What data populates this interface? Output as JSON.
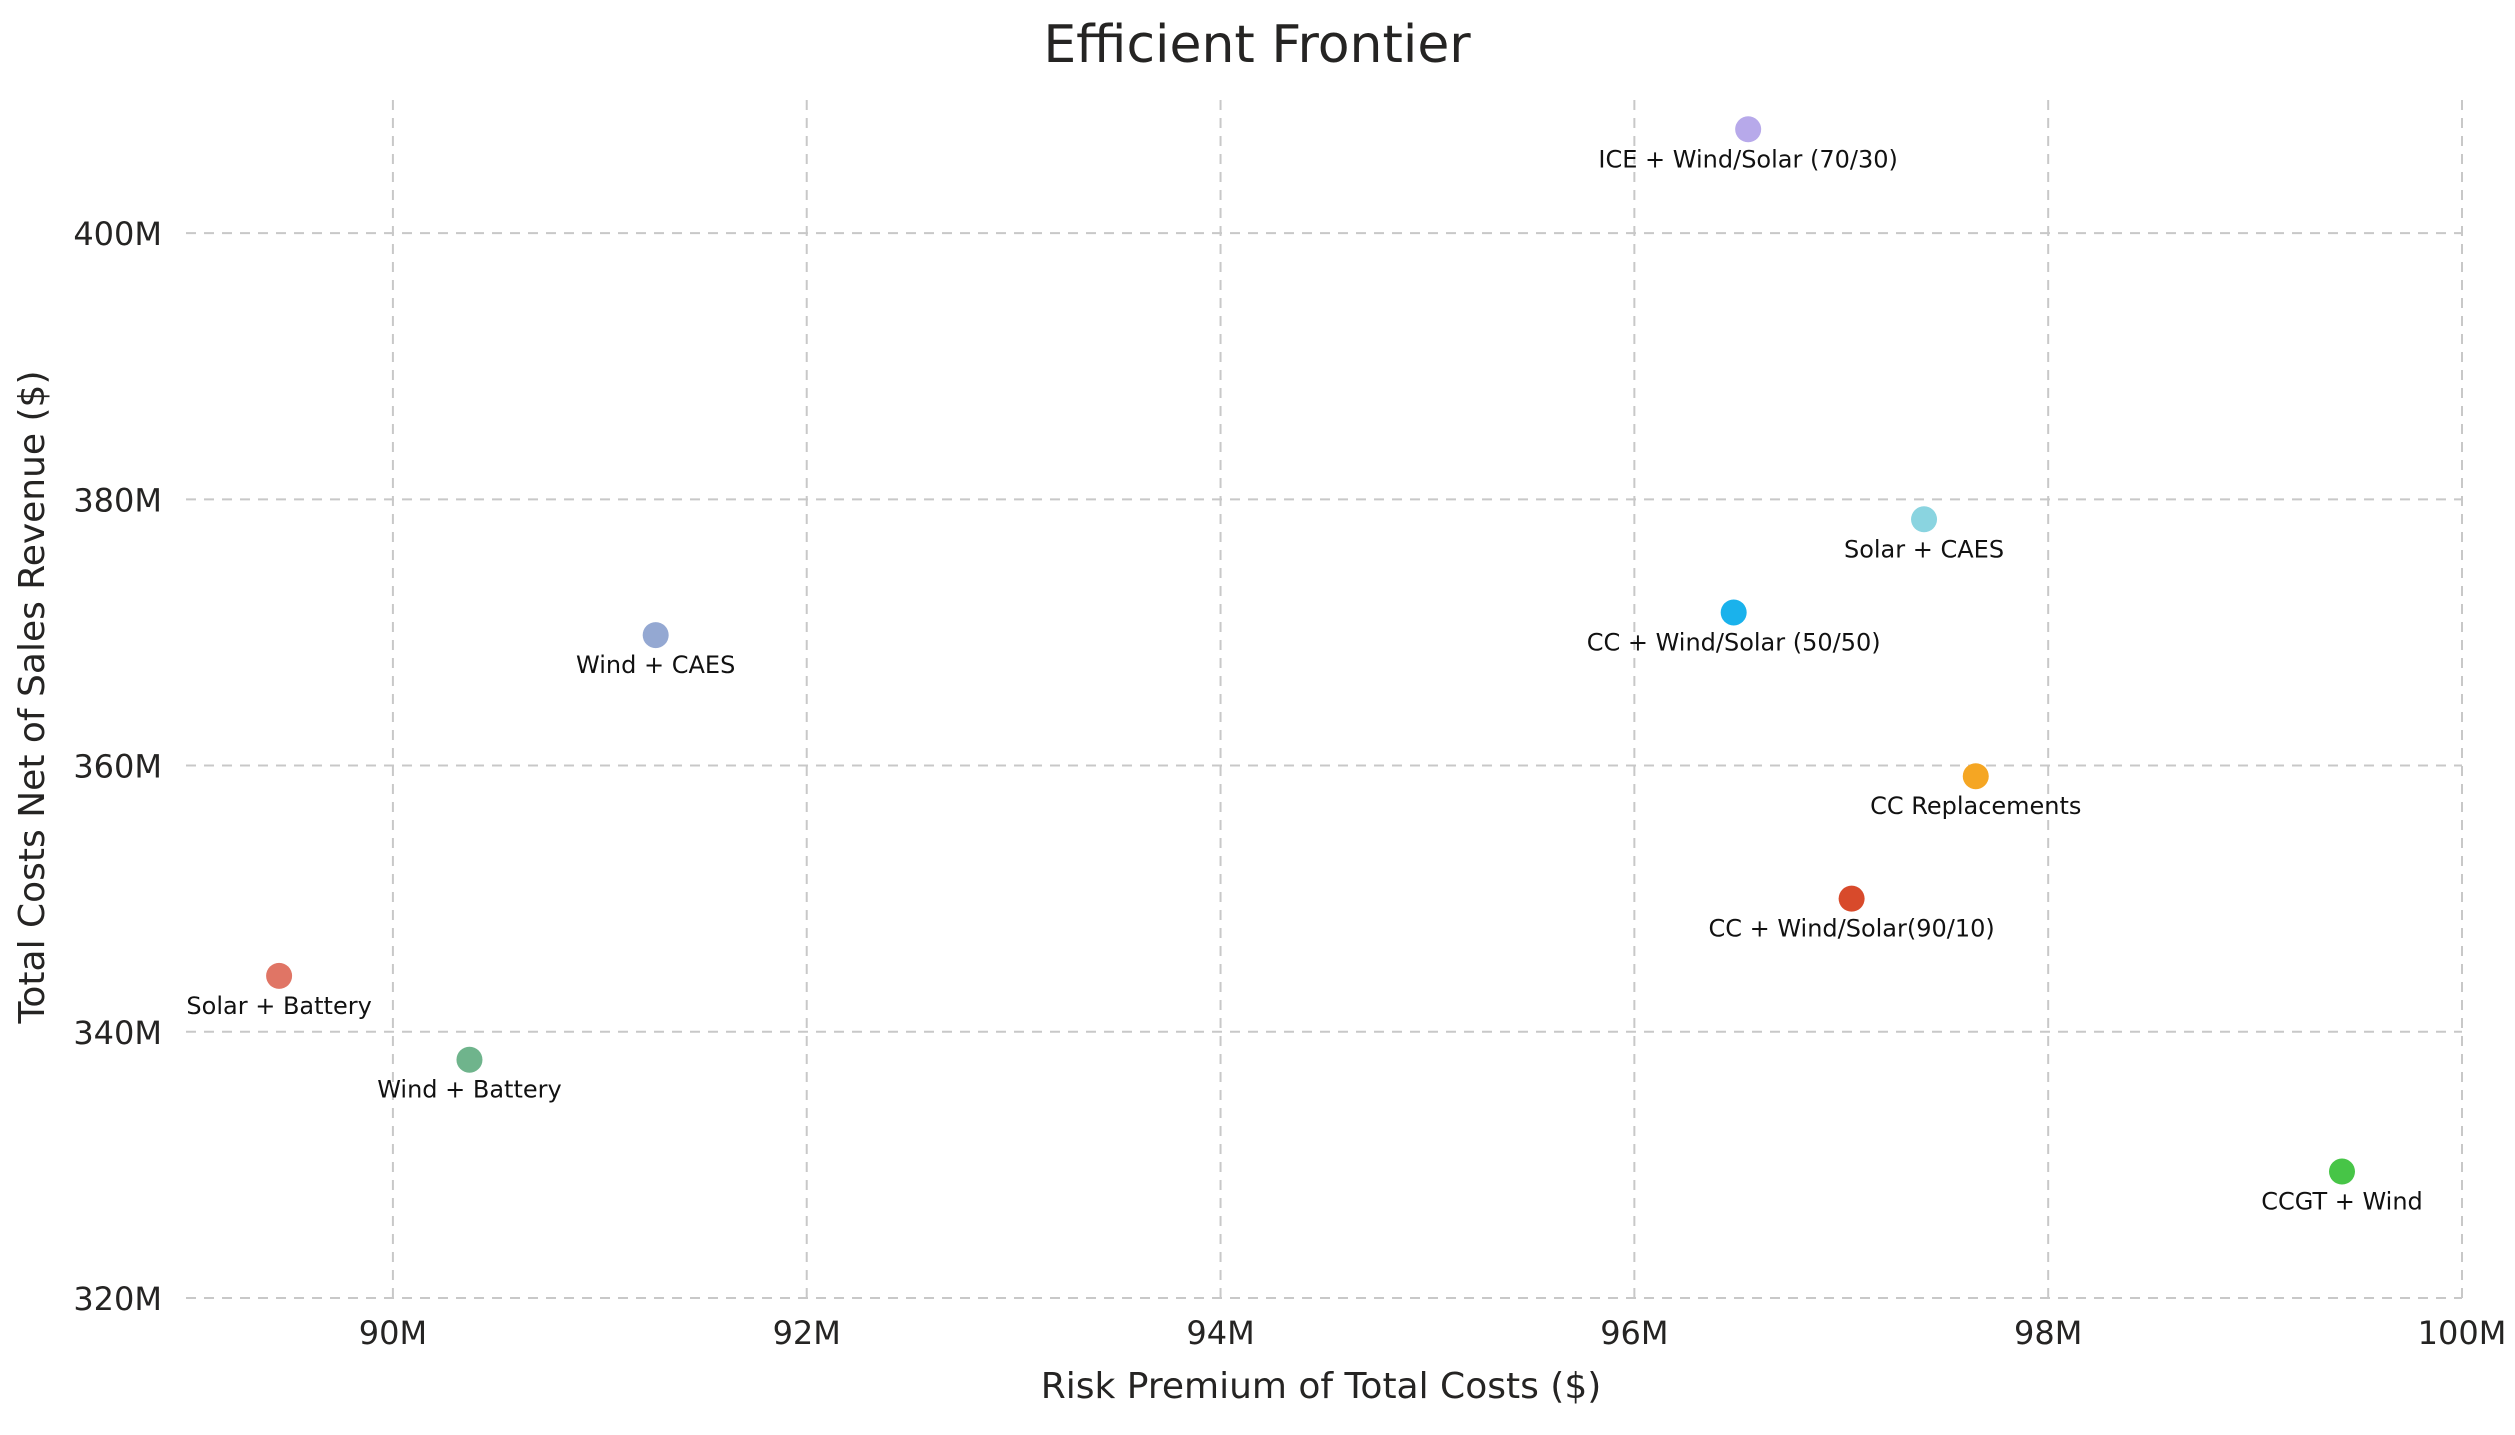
{
  "chart_data": {
    "type": "scatter",
    "title": "Efficient Frontier",
    "xlabel": "Risk Premium of Total Costs ($)",
    "ylabel": "Total Costs Net of Sales Revenue ($)",
    "xlim": [
      89000000,
      100000000
    ],
    "ylim": [
      320000000,
      410000000
    ],
    "x_ticks": [
      90000000,
      92000000,
      94000000,
      96000000,
      98000000,
      100000000
    ],
    "x_tick_labels": [
      "90M",
      "92M",
      "94M",
      "96M",
      "98M",
      "100M"
    ],
    "y_ticks": [
      320000000,
      340000000,
      360000000,
      380000000,
      400000000
    ],
    "y_tick_labels": [
      "320M",
      "340M",
      "360M",
      "380M",
      "400M"
    ],
    "grid": true,
    "legend": "none",
    "points": [
      {
        "label": "ICE + Wind/Solar (70/30)",
        "x": 96550000,
        "y": 407800000,
        "color": "#b7a9ea"
      },
      {
        "label": "Solar + CAES",
        "x": 97400000,
        "y": 378500000,
        "color": "#8ad4e0"
      },
      {
        "label": "CC + Wind/Solar (50/50)",
        "x": 96480000,
        "y": 371500000,
        "color": "#1ab2ec"
      },
      {
        "label": "Wind + CAES",
        "x": 91270000,
        "y": 369800000,
        "color": "#94a8d2"
      },
      {
        "label": "CC Replacements",
        "x": 97650000,
        "y": 359200000,
        "color": "#f5a623"
      },
      {
        "label": "CC + Wind/Solar(90/10)",
        "x": 97050000,
        "y": 350000000,
        "color": "#d84a2b"
      },
      {
        "label": "Solar + Battery",
        "x": 89450000,
        "y": 344200000,
        "color": "#e07565"
      },
      {
        "label": "Wind + Battery",
        "x": 90370000,
        "y": 337900000,
        "color": "#6fb48c"
      },
      {
        "label": "CCGT + Wind",
        "x": 99420000,
        "y": 329500000,
        "color": "#47c547"
      }
    ]
  }
}
